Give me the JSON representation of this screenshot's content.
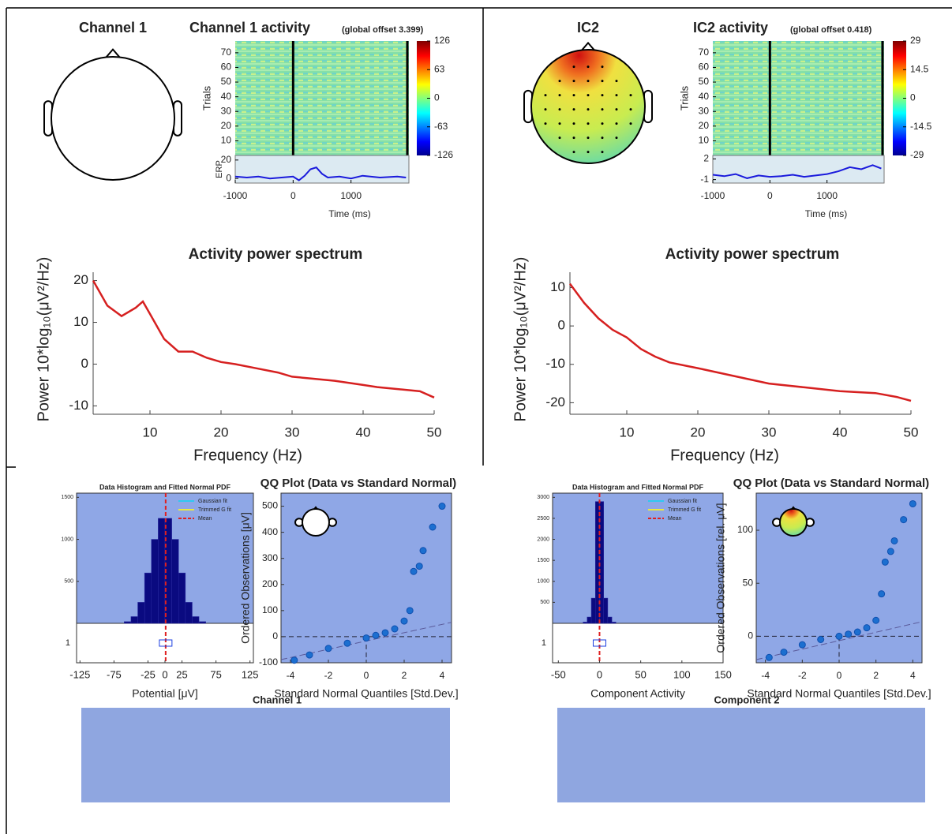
{
  "chart_data": [
    {
      "type": "erpimage",
      "head_title": "Channel 1",
      "title": "Channel 1 activity",
      "subtitle": "(global offset 3.399)",
      "ylabel": "Trials",
      "erp_label": "ERP",
      "xlabel": "Time (ms)",
      "xlim": [
        -1000,
        2000
      ],
      "xticks": [
        -1000,
        0,
        1000
      ],
      "ylim": [
        0,
        78
      ],
      "yticks": [
        10,
        20,
        30,
        40,
        50,
        60,
        70
      ],
      "clim": [
        -126,
        126
      ],
      "cticks": [
        126,
        63,
        0,
        -63,
        -126
      ],
      "erp_ylim": [
        -5,
        25
      ],
      "erp_yticks": [
        20,
        0
      ],
      "erp": {
        "color": "#1a1adc",
        "x": [
          -1000,
          -800,
          -600,
          -400,
          -200,
          0,
          100,
          200,
          300,
          400,
          500,
          600,
          800,
          1000,
          1200,
          1500,
          1800,
          1950
        ],
        "values": [
          2,
          1,
          2,
          0,
          1,
          2,
          -2,
          3,
          10,
          12,
          5,
          1,
          2,
          0,
          3,
          1,
          2,
          1
        ]
      }
    },
    {
      "type": "erpimage",
      "head_title": "IC2",
      "title": "IC2 activity",
      "subtitle": "(global offset 0.418)",
      "ylabel": "Trials",
      "xlabel": "Time (ms)",
      "xlim": [
        -1000,
        2000
      ],
      "xticks": [
        -1000,
        0,
        1000
      ],
      "ylim": [
        0,
        78
      ],
      "yticks": [
        10,
        20,
        30,
        40,
        50,
        60,
        70
      ],
      "clim": [
        -29,
        29
      ],
      "cticks": [
        29,
        14.5,
        0,
        -14.5,
        -29
      ],
      "erp_ylim": [
        -1.5,
        2.5
      ],
      "erp_yticks": [
        2,
        -1
      ],
      "erp": {
        "color": "#1a1adc",
        "x": [
          -1000,
          -800,
          -600,
          -400,
          -200,
          0,
          200,
          400,
          600,
          800,
          1000,
          1200,
          1400,
          1600,
          1800,
          1950
        ],
        "values": [
          -0.3,
          -0.5,
          -0.2,
          -0.8,
          -0.4,
          -0.6,
          -0.5,
          -0.3,
          -0.6,
          -0.4,
          -0.2,
          0.2,
          0.8,
          0.5,
          1.1,
          0.6
        ]
      }
    },
    {
      "type": "line",
      "title": "Activity power spectrum",
      "xlabel": "Frequency (Hz)",
      "ylabel": "Power 10*log₁₀(μV²/Hz)",
      "xlim": [
        2,
        50
      ],
      "xticks": [
        10,
        20,
        30,
        40,
        50
      ],
      "ylim": [
        -12,
        22
      ],
      "yticks": [
        -10,
        0,
        10,
        20
      ],
      "color": "#d62020",
      "x": [
        2,
        4,
        6,
        8,
        9,
        10,
        12,
        14,
        16,
        18,
        20,
        22,
        25,
        28,
        30,
        33,
        36,
        40,
        42,
        45,
        48,
        50
      ],
      "values": [
        20,
        14,
        11.5,
        13.5,
        15,
        12,
        6,
        3,
        3,
        1.5,
        0.5,
        0,
        -1,
        -2,
        -3,
        -3.5,
        -4,
        -5,
        -5.5,
        -6,
        -6.5,
        -8
      ]
    },
    {
      "type": "line",
      "title": "Activity power spectrum",
      "xlabel": "Frequency (Hz)",
      "ylabel": "Power 10*log₁₀(μV²/Hz)",
      "xlim": [
        2,
        50
      ],
      "xticks": [
        10,
        20,
        30,
        40,
        50
      ],
      "ylim": [
        -23,
        14
      ],
      "yticks": [
        -20,
        -10,
        0,
        10
      ],
      "color": "#d62020",
      "x": [
        2,
        4,
        6,
        8,
        10,
        12,
        14,
        16,
        20,
        25,
        30,
        35,
        40,
        45,
        48,
        50
      ],
      "values": [
        11,
        6,
        2,
        -1,
        -3,
        -6,
        -8,
        -9.5,
        -11,
        -13,
        -15,
        -16,
        -17,
        -17.5,
        -18.5,
        -19.5
      ]
    },
    {
      "type": "histogram",
      "title": "Data Histogram and Fitted Normal PDF",
      "xlabel": "Potential [μV]",
      "caption": "Channel 1",
      "box_label": "1",
      "xlim": [
        -130,
        130
      ],
      "xticks": [
        -125,
        -75,
        -25,
        0,
        25,
        75,
        125
      ],
      "ylim": [
        0,
        1550
      ],
      "yticks": [
        500,
        1000,
        1500
      ],
      "color": "#0a0a80",
      "mean": 1,
      "bins": [
        -60,
        -50,
        -40,
        -30,
        -20,
        -10,
        0,
        10,
        20,
        30,
        40,
        50,
        60
      ],
      "values": [
        20,
        80,
        250,
        600,
        1000,
        1250,
        1250,
        1000,
        600,
        250,
        80,
        20
      ],
      "legend": [
        {
          "name": "Gaussian fit",
          "color": "#30c8f0"
        },
        {
          "name": "Trimmed G fit",
          "color": "#e8e840"
        },
        {
          "name": "Mean",
          "color": "#e02020"
        }
      ]
    },
    {
      "type": "qq",
      "title": "QQ Plot (Data vs Standard Normal)",
      "xlabel": "Standard Normal Quantiles [Std.Dev.]",
      "ylabel": "Ordered Observations [μV]",
      "xlim": [
        -4.5,
        4.5
      ],
      "xticks": [
        -4,
        -2,
        0,
        2,
        4
      ],
      "ylim": [
        -100,
        550
      ],
      "yticks": [
        -100,
        0,
        100,
        200,
        300,
        400,
        500
      ],
      "color": "#1c6fd0",
      "x": [
        -3.8,
        -3,
        -2,
        -1,
        0,
        0.5,
        1,
        1.5,
        2,
        2.3,
        2.5,
        2.8,
        3,
        3.5,
        4
      ],
      "values": [
        -90,
        -70,
        -45,
        -25,
        -5,
        5,
        15,
        30,
        60,
        100,
        250,
        270,
        330,
        420,
        500
      ]
    },
    {
      "type": "histogram",
      "title": "Data Histogram and Fitted Normal PDF",
      "xlabel": "Component Activity",
      "caption": "Component 2",
      "box_label": "1",
      "xlim": [
        -57,
        150
      ],
      "xticks": [
        -50,
        0,
        50,
        100,
        150
      ],
      "ylim": [
        0,
        3100
      ],
      "yticks": [
        500,
        1000,
        1500,
        2000,
        2500,
        3000
      ],
      "color": "#0a0a80",
      "mean": 0,
      "bins": [
        -20,
        -15,
        -10,
        -5,
        0,
        5,
        10,
        15,
        20
      ],
      "values": [
        30,
        150,
        600,
        2900,
        2900,
        600,
        150,
        30
      ],
      "legend": [
        {
          "name": "Gaussian fit",
          "color": "#30c8f0"
        },
        {
          "name": "Trimmed G fit",
          "color": "#e8e840"
        },
        {
          "name": "Mean",
          "color": "#e02020"
        }
      ]
    },
    {
      "type": "qq",
      "title": "QQ Plot (Data vs Standard Normal)",
      "xlabel": "Standard Normal Quantiles [Std.Dev.]",
      "ylabel": "Ordered Observations [rel. μV]",
      "xlim": [
        -4.5,
        4.5
      ],
      "xticks": [
        -4,
        -2,
        0,
        2,
        4
      ],
      "ylim": [
        -25,
        135
      ],
      "yticks": [
        0,
        50,
        100
      ],
      "color": "#1c6fd0",
      "x": [
        -3.8,
        -3,
        -2,
        -1,
        0,
        0.5,
        1,
        1.5,
        2,
        2.3,
        2.5,
        2.8,
        3,
        3.5,
        4
      ],
      "values": [
        -20,
        -15,
        -8,
        -3,
        0,
        2,
        4,
        8,
        15,
        40,
        70,
        80,
        90,
        110,
        125
      ]
    }
  ]
}
